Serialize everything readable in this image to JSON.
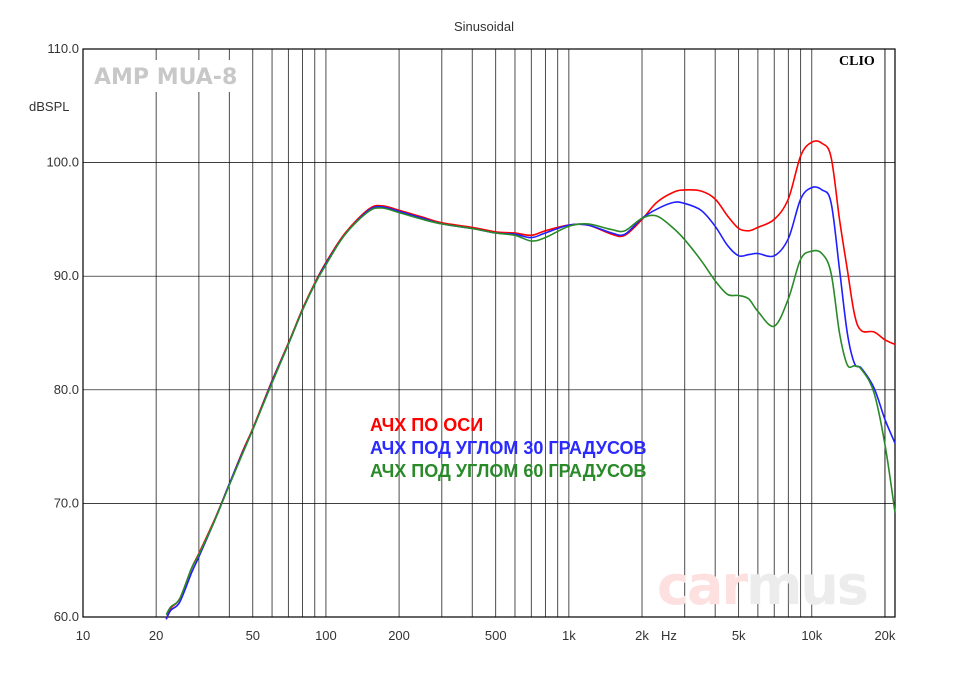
{
  "chart_data": {
    "type": "line",
    "title": "Sinusoidal",
    "ylabel": "dBSPL",
    "xlabel": "Hz",
    "brand_label": "AMP MUA-8",
    "clio_label": "CLIO",
    "watermark": {
      "part1": "car",
      "part2": "mus"
    },
    "x_scale": "log",
    "xlim": [
      10,
      22000
    ],
    "ylim": [
      60,
      110
    ],
    "grid": true,
    "y_ticks": [
      {
        "value": 60,
        "label": "60.0"
      },
      {
        "value": 70,
        "label": "70.0"
      },
      {
        "value": 80,
        "label": "80.0"
      },
      {
        "value": 90,
        "label": "90.0"
      },
      {
        "value": 100,
        "label": "100.0"
      },
      {
        "value": 110,
        "label": "110.0"
      }
    ],
    "x_ticks": [
      {
        "value": 10,
        "label": "10"
      },
      {
        "value": 20,
        "label": "20"
      },
      {
        "value": 50,
        "label": "50"
      },
      {
        "value": 100,
        "label": "100"
      },
      {
        "value": 200,
        "label": "200"
      },
      {
        "value": 500,
        "label": "500"
      },
      {
        "value": 1000,
        "label": "1k"
      },
      {
        "value": 2000,
        "label": "2k"
      },
      {
        "value": 5000,
        "label": "5k"
      },
      {
        "value": 10000,
        "label": "10k"
      },
      {
        "value": 20000,
        "label": "20k"
      }
    ],
    "legend_placement": "center",
    "series": [
      {
        "name": "АЧХ ПО ОСИ",
        "color": "#ff0000",
        "x": [
          22,
          23,
          25,
          28,
          30,
          35,
          40,
          45,
          50,
          60,
          70,
          80,
          90,
          100,
          120,
          150,
          170,
          200,
          250,
          300,
          400,
          500,
          600,
          700,
          800,
          1000,
          1200,
          1500,
          1700,
          2000,
          2300,
          2700,
          3000,
          3500,
          4000,
          4500,
          5000,
          5500,
          6000,
          7000,
          8000,
          9000,
          10000,
          11000,
          12000,
          13000,
          14000,
          15000,
          16000,
          18000,
          20000,
          22000
        ],
        "y": [
          59.8,
          60.8,
          61.6,
          64.3,
          65.6,
          68.7,
          71.7,
          74.4,
          76.6,
          80.8,
          84.1,
          87.1,
          89.4,
          91.2,
          93.8,
          95.9,
          96.2,
          95.8,
          95.2,
          94.7,
          94.3,
          93.9,
          93.8,
          93.6,
          94.0,
          94.5,
          94.5,
          93.7,
          93.6,
          95.0,
          96.5,
          97.4,
          97.6,
          97.5,
          96.8,
          95.3,
          94.2,
          94.0,
          94.3,
          95.0,
          96.8,
          100.6,
          101.8,
          101.7,
          100.5,
          95.0,
          90.6,
          86.6,
          85.2,
          85.1,
          84.4,
          84.0
        ]
      },
      {
        "name": "АЧХ ПОД УГЛОМ 30 ГРАДУСОВ",
        "color": "#1f1fff",
        "x": [
          22,
          23,
          25,
          28,
          30,
          35,
          40,
          45,
          50,
          60,
          70,
          80,
          90,
          100,
          120,
          150,
          170,
          200,
          250,
          300,
          400,
          500,
          600,
          700,
          800,
          1000,
          1200,
          1500,
          1700,
          2000,
          2300,
          2700,
          3000,
          3500,
          4000,
          4500,
          5000,
          5500,
          6000,
          7000,
          8000,
          9000,
          10000,
          11000,
          12000,
          13000,
          14000,
          15000,
          16000,
          18000,
          20000,
          22000
        ],
        "y": [
          59.8,
          60.6,
          61.3,
          63.9,
          65.3,
          68.6,
          71.7,
          74.3,
          76.5,
          80.7,
          84.0,
          87.0,
          89.3,
          91.1,
          93.7,
          95.8,
          96.1,
          95.7,
          95.1,
          94.6,
          94.2,
          93.8,
          93.7,
          93.4,
          93.8,
          94.5,
          94.5,
          93.8,
          93.7,
          95.1,
          95.9,
          96.5,
          96.4,
          95.8,
          94.4,
          92.7,
          91.8,
          91.9,
          92.0,
          91.8,
          93.3,
          96.8,
          97.8,
          97.6,
          96.5,
          90.6,
          85.0,
          82.3,
          81.9,
          80.2,
          77.4,
          75.3
        ]
      },
      {
        "name": "АЧХ ПОД УГЛОМ 60 ГРАДУСОВ",
        "color": "#2a8a2a",
        "x": [
          22,
          23,
          25,
          28,
          30,
          35,
          40,
          45,
          50,
          60,
          70,
          80,
          90,
          100,
          120,
          150,
          170,
          200,
          250,
          300,
          400,
          500,
          600,
          700,
          800,
          1000,
          1200,
          1500,
          1700,
          2000,
          2300,
          2700,
          3000,
          3500,
          4000,
          4500,
          5000,
          5500,
          6000,
          7000,
          8000,
          9000,
          10000,
          11000,
          12000,
          13000,
          14000,
          15000,
          16000,
          18000,
          20000,
          22000
        ],
        "y": [
          60.2,
          60.9,
          61.6,
          64.3,
          65.5,
          68.6,
          71.6,
          74.2,
          76.5,
          80.6,
          84.0,
          87.0,
          89.3,
          91.0,
          93.7,
          95.7,
          96.0,
          95.6,
          95.0,
          94.6,
          94.2,
          93.8,
          93.6,
          93.1,
          93.4,
          94.4,
          94.6,
          94.1,
          94.0,
          95.1,
          95.3,
          94.2,
          93.2,
          91.4,
          89.6,
          88.4,
          88.3,
          88.0,
          86.9,
          85.6,
          88.0,
          91.5,
          92.2,
          92.0,
          90.3,
          85.0,
          82.2,
          82.1,
          81.8,
          79.8,
          75.2,
          69.2
        ]
      }
    ]
  }
}
